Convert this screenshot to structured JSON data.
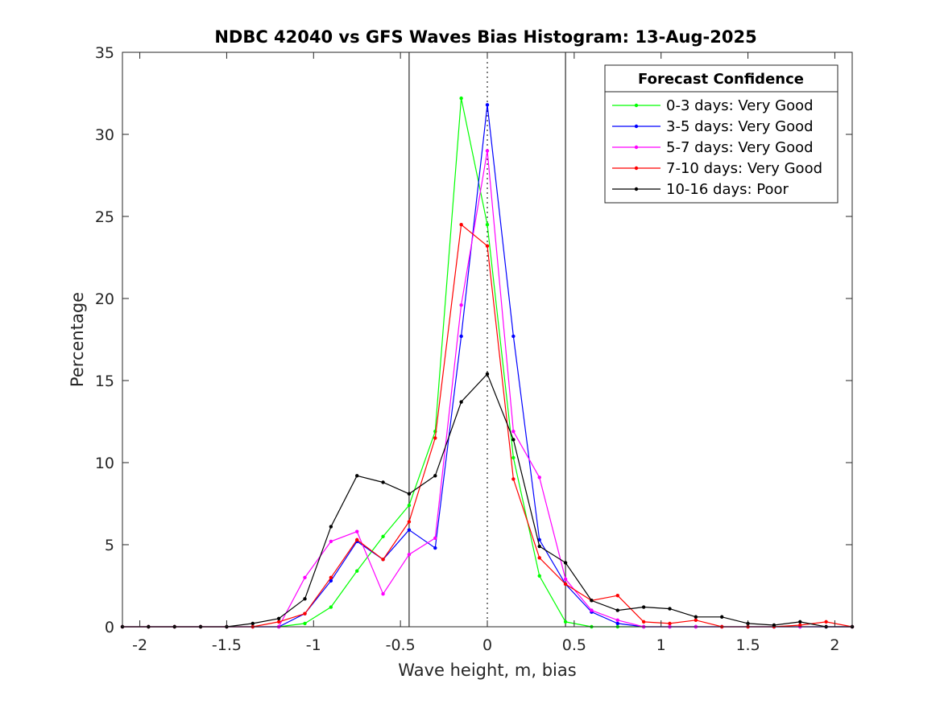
{
  "chart_data": {
    "type": "line",
    "title": "NDBC 42040 vs GFS Waves Bias Histogram: 13-Aug-2025",
    "xlabel": "Wave height, m, bias",
    "ylabel": "Percentage",
    "xlim": [
      -2.1,
      2.1
    ],
    "ylim": [
      0,
      35
    ],
    "xticks": [
      -2,
      -1.5,
      -1,
      -0.5,
      0,
      0.5,
      1,
      1.5,
      2
    ],
    "xtick_labels": [
      "-2",
      "-1.5",
      "-1",
      "-0.5",
      "0",
      "0.5",
      "1",
      "1.5",
      "2"
    ],
    "yticks": [
      0,
      5,
      10,
      15,
      20,
      25,
      30,
      35
    ],
    "ytick_labels": [
      "0",
      "5",
      "10",
      "15",
      "20",
      "25",
      "30",
      "35"
    ],
    "grid": false,
    "legend": {
      "title": "Forecast Confidence",
      "placement": "top-right"
    },
    "reference_lines": {
      "solid": [
        -0.45,
        0.45
      ],
      "dotted": [
        0
      ]
    },
    "x": [
      -2.1,
      -1.95,
      -1.8,
      -1.65,
      -1.5,
      -1.35,
      -1.2,
      -1.05,
      -0.9,
      -0.75,
      -0.6,
      -0.45,
      -0.3,
      -0.15,
      0,
      0.15,
      0.3,
      0.45,
      0.6,
      0.75,
      0.9,
      1.05,
      1.2,
      1.35,
      1.5,
      1.65,
      1.8,
      1.95,
      2.1
    ],
    "series": [
      {
        "name": "0-3 days: Very Good",
        "color": "#00ff00",
        "values": [
          0,
          0,
          0,
          0,
          0,
          0,
          0,
          0.2,
          1.2,
          3.4,
          5.5,
          7.4,
          11.9,
          32.2,
          24.5,
          10.3,
          3.1,
          0.3,
          0,
          0,
          0,
          0,
          0,
          0,
          0,
          0,
          0,
          0,
          0
        ]
      },
      {
        "name": "3-5 days: Very Good",
        "color": "#0000ff",
        "values": [
          0,
          0,
          0,
          0,
          0,
          0,
          0,
          0.8,
          2.8,
          5.2,
          4.1,
          5.9,
          4.8,
          17.7,
          31.8,
          17.7,
          5.3,
          2.6,
          0.9,
          0.2,
          0,
          0,
          0,
          0,
          0,
          0,
          0,
          0,
          0
        ]
      },
      {
        "name": "5-7 days: Very Good",
        "color": "#ff00ff",
        "values": [
          0,
          0,
          0,
          0,
          0,
          0,
          0,
          3.0,
          5.2,
          5.8,
          2.0,
          4.4,
          5.4,
          19.6,
          29.0,
          11.9,
          9.1,
          2.9,
          1.0,
          0.4,
          0,
          0,
          0,
          0,
          0,
          0,
          0,
          0,
          0
        ]
      },
      {
        "name": "7-10 days: Very Good",
        "color": "#ff0000",
        "values": [
          0,
          0,
          0,
          0,
          0,
          0,
          0.3,
          0.8,
          3.0,
          5.3,
          4.1,
          6.4,
          11.5,
          24.5,
          23.2,
          9.0,
          4.2,
          2.6,
          1.6,
          1.9,
          0.3,
          0.2,
          0.4,
          0,
          0,
          0,
          0.1,
          0.3,
          0
        ]
      },
      {
        "name": "10-16 days: Poor",
        "color": "#000000",
        "values": [
          0,
          0,
          0,
          0,
          0,
          0.2,
          0.5,
          1.7,
          6.1,
          9.2,
          8.8,
          8.1,
          9.2,
          13.7,
          15.4,
          11.4,
          4.9,
          3.9,
          1.6,
          1.0,
          1.2,
          1.1,
          0.6,
          0.6,
          0.2,
          0.1,
          0.3,
          0,
          0
        ]
      }
    ]
  }
}
